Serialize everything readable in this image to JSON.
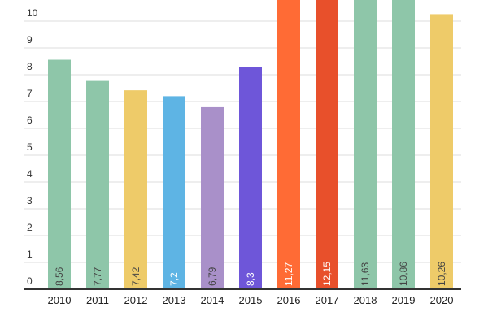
{
  "chart_data": {
    "type": "bar",
    "title": "",
    "xlabel": "",
    "ylabel": "",
    "categories": [
      "2010",
      "2011",
      "2012",
      "2013",
      "2014",
      "2015",
      "2016",
      "2017",
      "2018",
      "2019",
      "2020"
    ],
    "values": [
      8.56,
      7.77,
      7.42,
      7.2,
      6.79,
      8.3,
      11.27,
      12.15,
      11.63,
      10.86,
      10.26
    ],
    "value_labels": [
      "8,56",
      "7,77",
      "7,42",
      "7,2",
      "6,79",
      "8,3",
      "11,27",
      "12,15",
      "11,63",
      "10,86",
      "10,26"
    ],
    "colors": [
      "#8ec6a9",
      "#8ec6a9",
      "#eecb69",
      "#5eb4e4",
      "#a990c9",
      "#6e56d9",
      "#ff6b35",
      "#e8502b",
      "#8ec6a9",
      "#8ec6a9",
      "#eecb69"
    ],
    "label_colors": [
      "#444444",
      "#444444",
      "#444444",
      "#ffffff",
      "#444444",
      "#ffffff",
      "#ffffff",
      "#ffffff",
      "#444444",
      "#444444",
      "#444444"
    ],
    "y_ticks": [
      "0",
      "1",
      "2",
      "3",
      "4",
      "5",
      "6",
      "7",
      "8",
      "9",
      "10"
    ],
    "ylim": [
      0,
      10.35
    ],
    "grid": true,
    "legend": "none"
  }
}
